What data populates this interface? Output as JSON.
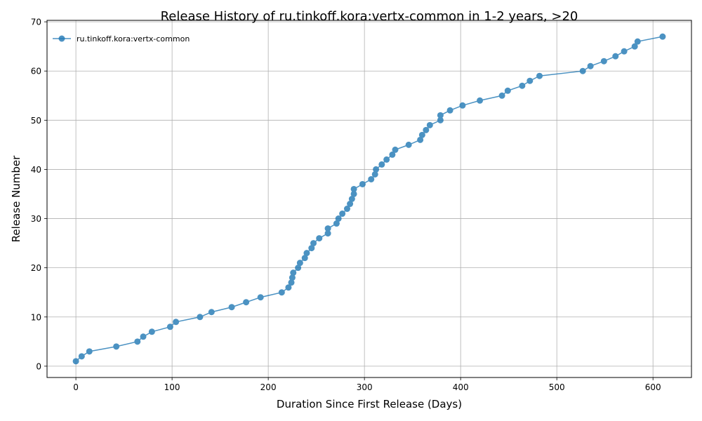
{
  "chart_data": {
    "type": "line",
    "title": "Release History of ru.tinkoff.kora:vertx-common in 1-2 years, >20",
    "xlabel": "Duration Since First Release (Days)",
    "ylabel": "Release Number",
    "xlim": [
      -30,
      640
    ],
    "ylim": [
      -2.3,
      70.3
    ],
    "xticks": [
      0,
      100,
      200,
      300,
      400,
      500,
      600
    ],
    "yticks": [
      0,
      10,
      20,
      30,
      40,
      50,
      60,
      70
    ],
    "grid": true,
    "legend_position": "top-left",
    "series": [
      {
        "name": "ru.tinkoff.kora:vertx-common",
        "color": "#1f77b4",
        "marker": "circle",
        "x": [
          0,
          6,
          14,
          42,
          64,
          70,
          79,
          98,
          104,
          129,
          141,
          162,
          177,
          192,
          214,
          221,
          224,
          225,
          226,
          231,
          233,
          238,
          240,
          245,
          247,
          253,
          262,
          262,
          271,
          273,
          277,
          282,
          285,
          287,
          289,
          289,
          298,
          307,
          311,
          312,
          318,
          323,
          329,
          332,
          346,
          358,
          360,
          364,
          368,
          379,
          379,
          389,
          402,
          420,
          443,
          449,
          464,
          472,
          482,
          527,
          535,
          549,
          561,
          570,
          581,
          584,
          610
        ],
        "y": [
          1,
          2,
          3,
          4,
          5,
          6,
          7,
          8,
          9,
          10,
          11,
          12,
          13,
          14,
          15,
          16,
          17,
          18,
          19,
          20,
          21,
          22,
          23,
          24,
          25,
          26,
          27,
          28,
          29,
          30,
          31,
          32,
          33,
          34,
          35,
          36,
          37,
          38,
          39,
          40,
          41,
          42,
          43,
          44,
          45,
          46,
          47,
          48,
          49,
          50,
          51,
          52,
          53,
          54,
          55,
          56,
          57,
          58,
          59,
          60,
          61,
          62,
          63,
          64,
          65,
          66,
          67
        ]
      }
    ]
  }
}
